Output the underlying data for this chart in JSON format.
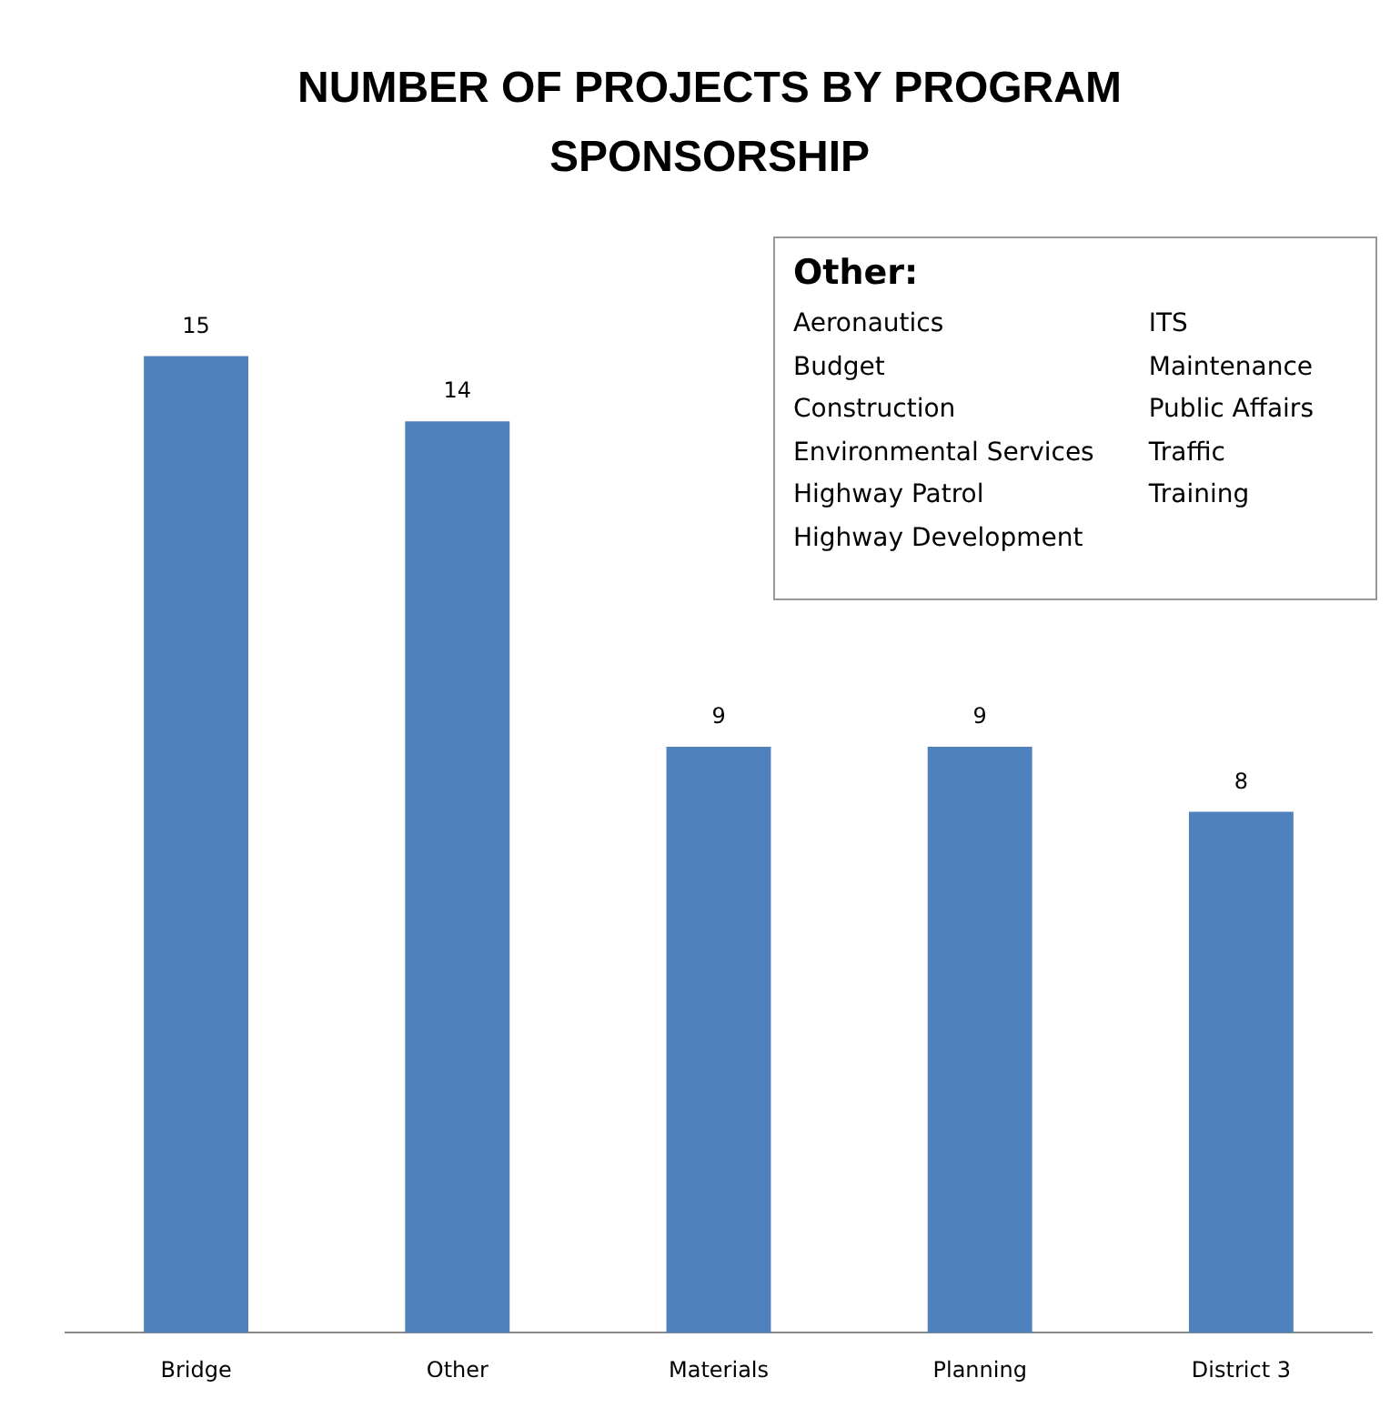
{
  "chart_data": {
    "type": "bar",
    "title": "NUMBER OF PROJECTS BY PROGRAM SPONSORSHIP",
    "categories": [
      "Bridge",
      "Other",
      "Materials",
      "Planning",
      "District 3"
    ],
    "values": [
      15,
      14,
      9,
      9,
      8
    ],
    "color": "#4f81bd",
    "data_labels": true,
    "relative": false,
    "grid": false,
    "legend": false,
    "annotations": [
      "Other:",
      "Aeronautics",
      "Budget",
      "Construction",
      "Environmental Services",
      "Highway Patrol",
      "Highway Development",
      "ITS",
      "Maintenance",
      "Public Affairs",
      "Traffic",
      "Training"
    ]
  }
}
